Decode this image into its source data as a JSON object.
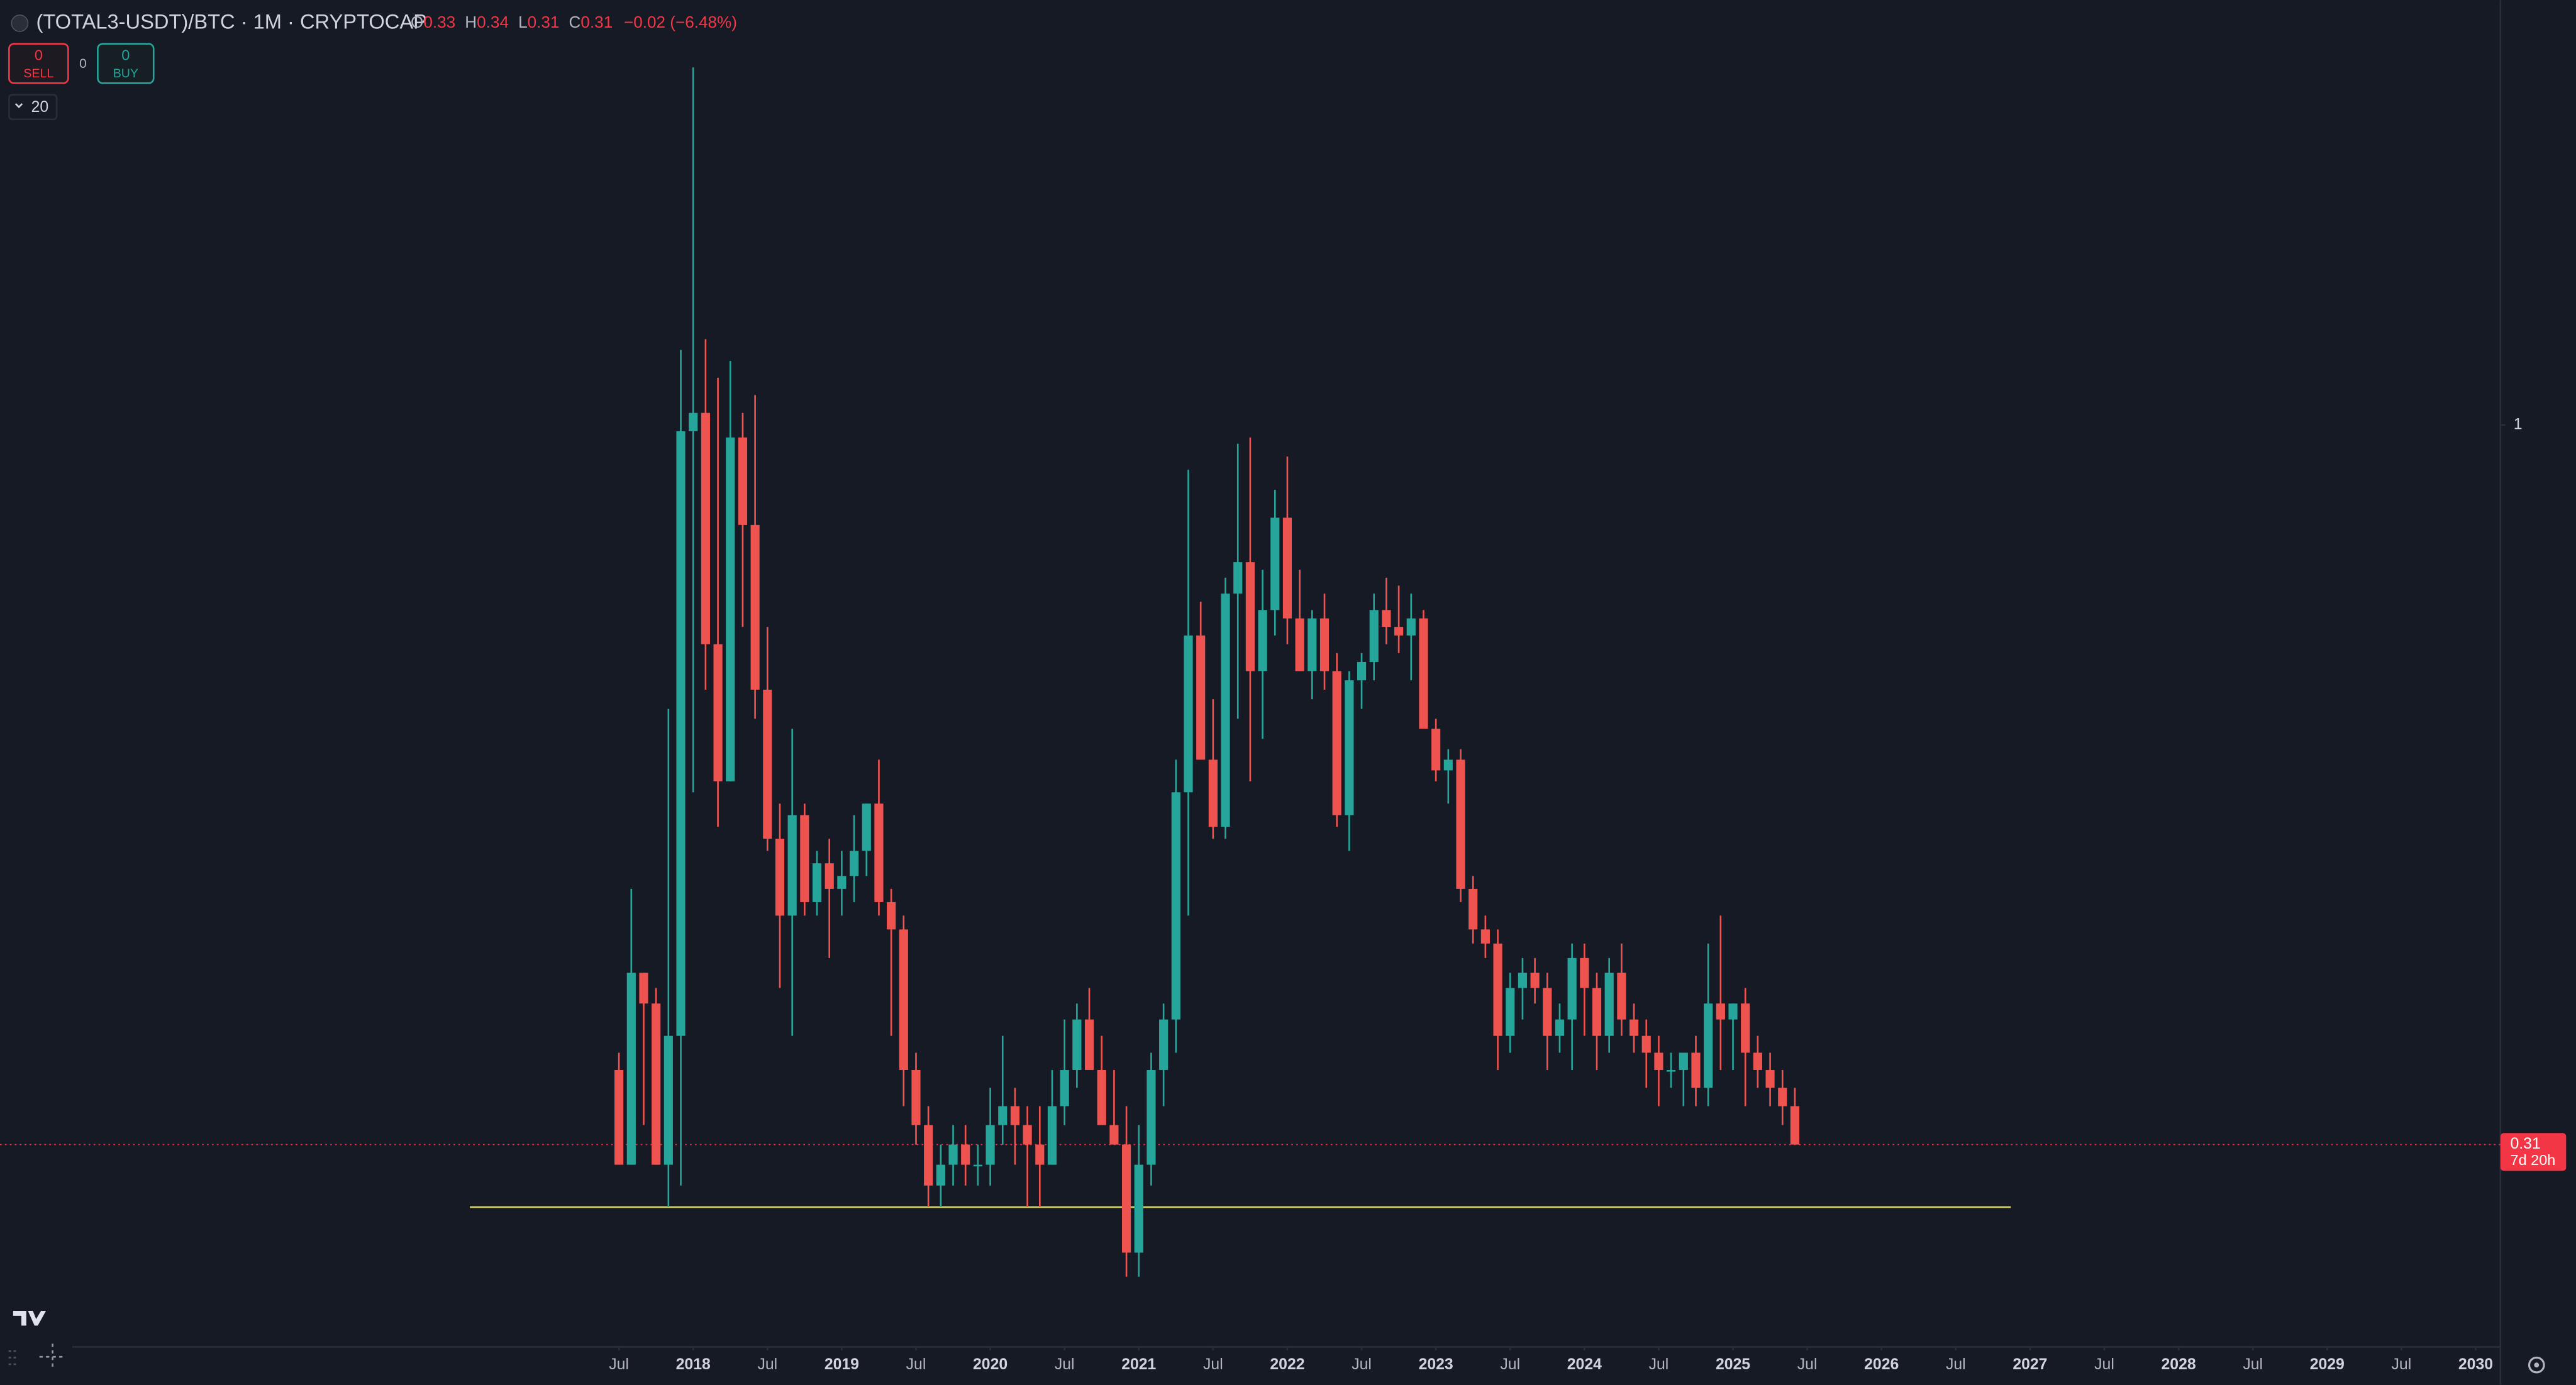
{
  "header": {
    "symbol": "(TOTAL3-USDT)/BTC · 1M · CRYPTOCAP",
    "ohlc_letters": [
      "O",
      "H",
      "L",
      "C"
    ],
    "change": "−0.02 (−6.48%)"
  },
  "toolbar": {
    "sell_count": "0",
    "sell": "SELL",
    "spread": "0",
    "buy_count": "0",
    "buy": "BUY",
    "indicator_count": "20"
  },
  "chart_data": {
    "type": "candlestick",
    "up_color": "#26a69a",
    "down_color": "#ef5350",
    "y_scale": "log",
    "x": [
      "2017-07",
      "2017-08",
      "2017-09",
      "2017-10",
      "2017-11",
      "2017-12",
      "2018-01",
      "2018-02",
      "2018-03",
      "2018-04",
      "2018-05",
      "2018-06",
      "2018-07",
      "2018-08",
      "2018-09",
      "2018-10",
      "2018-11",
      "2018-12",
      "2019-01",
      "2019-02",
      "2019-03",
      "2019-04",
      "2019-05",
      "2019-06",
      "2019-07",
      "2019-08",
      "2019-09",
      "2019-10",
      "2019-11",
      "2019-12",
      "2020-01",
      "2020-02",
      "2020-03",
      "2020-04",
      "2020-05",
      "2020-06",
      "2020-07",
      "2020-08",
      "2020-09",
      "2020-10",
      "2020-11",
      "2020-12",
      "2021-01",
      "2021-02",
      "2021-03",
      "2021-04",
      "2021-05",
      "2021-06",
      "2021-07",
      "2021-08",
      "2021-09",
      "2021-10",
      "2021-11",
      "2021-12",
      "2022-01",
      "2022-02",
      "2022-03",
      "2022-04",
      "2022-05",
      "2022-06",
      "2022-07",
      "2022-08",
      "2022-09",
      "2022-10",
      "2022-11",
      "2022-12",
      "2023-01",
      "2023-02",
      "2023-03",
      "2023-04",
      "2023-05",
      "2023-06",
      "2023-07",
      "2023-08",
      "2023-09",
      "2023-10",
      "2023-11",
      "2023-12",
      "2024-01",
      "2024-02",
      "2024-03",
      "2024-04",
      "2024-05",
      "2024-06",
      "2024-07",
      "2024-08",
      "2024-09",
      "2024-10",
      "2024-11",
      "2024-12",
      "2025-01",
      "2025-02",
      "2025-03",
      "2025-04",
      "2025-05",
      "2025-06"
    ],
    "open": [
      0.35,
      0.3,
      0.41,
      0.39,
      0.3,
      0.37,
      0.99,
      1.02,
      0.7,
      0.56,
      0.98,
      0.85,
      0.65,
      0.51,
      0.45,
      0.53,
      0.46,
      0.49,
      0.47,
      0.48,
      0.5,
      0.54,
      0.46,
      0.44,
      0.35,
      0.32,
      0.29,
      0.3,
      0.31,
      0.3,
      0.3,
      0.32,
      0.33,
      0.32,
      0.31,
      0.3,
      0.33,
      0.35,
      0.38,
      0.35,
      0.32,
      0.31,
      0.26,
      0.3,
      0.35,
      0.38,
      0.55,
      0.71,
      0.58,
      0.52,
      0.76,
      0.8,
      0.67,
      0.74,
      0.86,
      0.73,
      0.67,
      0.73,
      0.67,
      0.53,
      0.66,
      0.68,
      0.74,
      0.72,
      0.71,
      0.73,
      0.61,
      0.57,
      0.58,
      0.47,
      0.44,
      0.43,
      0.37,
      0.4,
      0.41,
      0.4,
      0.37,
      0.38,
      0.42,
      0.4,
      0.37,
      0.41,
      0.38,
      0.37,
      0.36,
      0.35,
      0.35,
      0.36,
      0.34,
      0.39,
      0.38,
      0.39,
      0.36,
      0.35,
      0.34,
      0.33
    ],
    "high": [
      0.36,
      0.47,
      0.41,
      0.4,
      0.63,
      1.13,
      1.79,
      1.15,
      1.08,
      1.11,
      1.02,
      1.05,
      0.72,
      0.54,
      0.61,
      0.54,
      0.5,
      0.51,
      0.5,
      0.53,
      0.54,
      0.58,
      0.47,
      0.45,
      0.36,
      0.33,
      0.31,
      0.32,
      0.32,
      0.31,
      0.34,
      0.37,
      0.34,
      0.33,
      0.33,
      0.35,
      0.38,
      0.39,
      0.4,
      0.37,
      0.35,
      0.33,
      0.32,
      0.36,
      0.39,
      0.58,
      0.93,
      0.75,
      0.64,
      0.78,
      0.97,
      0.98,
      0.79,
      0.9,
      0.95,
      0.79,
      0.74,
      0.76,
      0.69,
      0.67,
      0.69,
      0.76,
      0.78,
      0.77,
      0.76,
      0.74,
      0.62,
      0.59,
      0.59,
      0.48,
      0.45,
      0.44,
      0.41,
      0.42,
      0.42,
      0.41,
      0.39,
      0.43,
      0.43,
      0.41,
      0.42,
      0.43,
      0.39,
      0.38,
      0.37,
      0.36,
      0.36,
      0.37,
      0.43,
      0.45,
      0.39,
      0.4,
      0.37,
      0.36,
      0.35,
      0.34
    ],
    "low": [
      0.3,
      0.3,
      0.32,
      0.3,
      0.28,
      0.29,
      0.55,
      0.65,
      0.52,
      0.56,
      0.72,
      0.62,
      0.5,
      0.4,
      0.37,
      0.45,
      0.45,
      0.42,
      0.45,
      0.46,
      0.48,
      0.45,
      0.37,
      0.33,
      0.31,
      0.28,
      0.28,
      0.29,
      0.29,
      0.29,
      0.29,
      0.31,
      0.3,
      0.28,
      0.28,
      0.3,
      0.32,
      0.34,
      0.35,
      0.32,
      0.31,
      0.25,
      0.25,
      0.29,
      0.33,
      0.36,
      0.45,
      0.58,
      0.51,
      0.51,
      0.62,
      0.56,
      0.6,
      0.71,
      0.7,
      0.67,
      0.64,
      0.65,
      0.52,
      0.5,
      0.63,
      0.66,
      0.7,
      0.69,
      0.66,
      0.61,
      0.56,
      0.54,
      0.46,
      0.43,
      0.42,
      0.35,
      0.36,
      0.38,
      0.39,
      0.35,
      0.36,
      0.35,
      0.37,
      0.35,
      0.36,
      0.37,
      0.36,
      0.34,
      0.33,
      0.34,
      0.33,
      0.33,
      0.33,
      0.35,
      0.35,
      0.33,
      0.34,
      0.33,
      0.32,
      0.31
    ],
    "close": [
      0.3,
      0.41,
      0.39,
      0.3,
      0.37,
      0.99,
      1.02,
      0.7,
      0.56,
      0.98,
      0.85,
      0.65,
      0.51,
      0.45,
      0.53,
      0.46,
      0.49,
      0.47,
      0.48,
      0.5,
      0.54,
      0.46,
      0.44,
      0.35,
      0.32,
      0.29,
      0.3,
      0.31,
      0.3,
      0.3,
      0.32,
      0.33,
      0.32,
      0.31,
      0.3,
      0.33,
      0.35,
      0.38,
      0.35,
      0.32,
      0.31,
      0.26,
      0.3,
      0.35,
      0.38,
      0.55,
      0.71,
      0.58,
      0.52,
      0.76,
      0.8,
      0.67,
      0.74,
      0.86,
      0.73,
      0.67,
      0.73,
      0.67,
      0.53,
      0.66,
      0.68,
      0.74,
      0.72,
      0.71,
      0.73,
      0.61,
      0.57,
      0.58,
      0.47,
      0.44,
      0.43,
      0.37,
      0.4,
      0.41,
      0.4,
      0.37,
      0.38,
      0.42,
      0.4,
      0.37,
      0.41,
      0.38,
      0.37,
      0.36,
      0.35,
      0.35,
      0.36,
      0.34,
      0.39,
      0.38,
      0.39,
      0.36,
      0.35,
      0.34,
      0.33,
      0.31
    ],
    "xlim": [
      "2013-05",
      "2030-03"
    ],
    "xticks": [
      {
        "value": "2017-07",
        "label": "Jul"
      },
      {
        "value": "2018-01",
        "label": "2018"
      },
      {
        "value": "2018-07",
        "label": "Jul"
      },
      {
        "value": "2019-01",
        "label": "2019"
      },
      {
        "value": "2019-07",
        "label": "Jul"
      },
      {
        "value": "2020-01",
        "label": "2020"
      },
      {
        "value": "2020-07",
        "label": "Jul"
      },
      {
        "value": "2021-01",
        "label": "2021"
      },
      {
        "value": "2021-07",
        "label": "Jul"
      },
      {
        "value": "2022-01",
        "label": "2022"
      },
      {
        "value": "2022-07",
        "label": "Jul"
      },
      {
        "value": "2023-01",
        "label": "2023"
      },
      {
        "value": "2023-07",
        "label": "Jul"
      },
      {
        "value": "2024-01",
        "label": "2024"
      },
      {
        "value": "2024-07",
        "label": "Jul"
      },
      {
        "value": "2025-01",
        "label": "2025"
      },
      {
        "value": "2025-07",
        "label": "Jul"
      },
      {
        "value": "2026-01",
        "label": "2026"
      },
      {
        "value": "2026-07",
        "label": "Jul"
      },
      {
        "value": "2027-01",
        "label": "2027"
      },
      {
        "value": "2027-07",
        "label": "Jul"
      },
      {
        "value": "2028-01",
        "label": "2028"
      },
      {
        "value": "2028-07",
        "label": "Jul"
      },
      {
        "value": "2029-01",
        "label": "2029"
      },
      {
        "value": "2029-07",
        "label": "Jul"
      },
      {
        "value": "2030-01",
        "label": "2030"
      }
    ],
    "ylim": [
      0.223,
      1.97
    ],
    "yticks": [
      1
    ],
    "hline": {
      "value": 0.28,
      "color": "#d9d45c"
    },
    "last_price": {
      "countdown": "7d 20h",
      "color": "#f23645"
    }
  }
}
